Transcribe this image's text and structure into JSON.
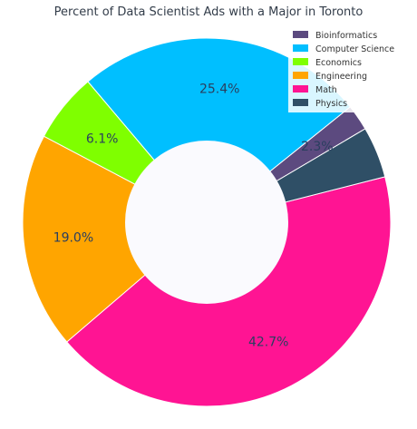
{
  "chart_data": {
    "type": "pie",
    "variant": "donut",
    "title": "Percent of Data Scientist Ads with a Major in Toronto",
    "categories": [
      "Bioinformatics",
      "Computer Science",
      "Economics",
      "Engineering",
      "Math",
      "Physics"
    ],
    "values": [
      2.3,
      25.4,
      6.1,
      19.0,
      42.7,
      4.5
    ],
    "labels": [
      "2.3%",
      "25.4%",
      "6.1%",
      "19.0%",
      "42.7%",
      ""
    ],
    "colors": [
      "#5c4a7f",
      "#00bfff",
      "#7fff00",
      "#ffa500",
      "#ff1493",
      "#2f4f66"
    ],
    "legend": "top-right",
    "background": "#fafafe"
  }
}
